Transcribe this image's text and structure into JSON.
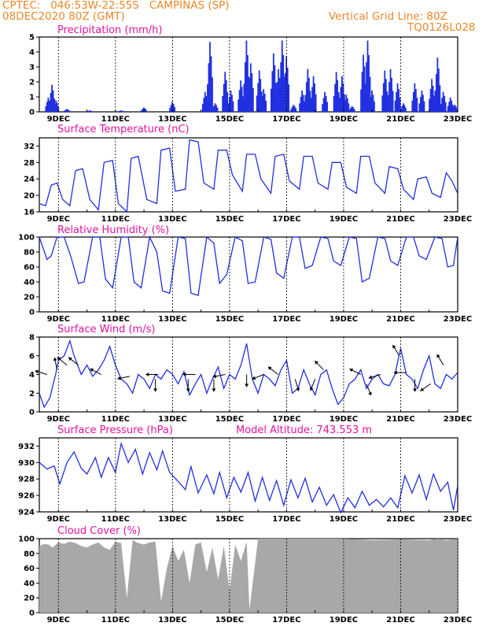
{
  "header": {
    "org_location": "CPTEC:   046:53W-22:55S   CAMPINAS (SP)",
    "run_time": "08DEC2020 80Z (GMT)",
    "grid_line": "Vertical Grid Line: 80Z",
    "code": "TQ0126L028"
  },
  "colors": {
    "header": "#e8882a",
    "panel_title": "#e0149c",
    "series_line": "#2030e0",
    "cloud_fill": "#a8a8a8",
    "wind_arrow": "#000000"
  },
  "chart_data": [
    {
      "type": "bar",
      "title": "Precipitation (mm/h)",
      "ylim": [
        0,
        5
      ],
      "y_ticks": [
        "0",
        "1",
        "2",
        "3",
        "4",
        "5"
      ],
      "x_ticks": [
        "9DEC",
        "11DEC",
        "13DEC",
        "15DEC",
        "17DEC",
        "19DEC",
        "21DEC",
        "23DEC"
      ],
      "xlim_days": [
        8.33,
        23.0
      ],
      "events": [
        {
          "day": 8.65,
          "peak": 1.0
        },
        {
          "day": 8.78,
          "peak": 1.9
        },
        {
          "day": 8.92,
          "peak": 0.8
        },
        {
          "day": 9.3,
          "peak": 0.2
        },
        {
          "day": 10.1,
          "peak": 0.1
        },
        {
          "day": 11.2,
          "peak": 0.1
        },
        {
          "day": 12.0,
          "peak": 0.3
        },
        {
          "day": 13.0,
          "peak": 0.7
        },
        {
          "day": 14.15,
          "peak": 1.4
        },
        {
          "day": 14.32,
          "peak": 4.9
        },
        {
          "day": 14.5,
          "peak": 0.6
        },
        {
          "day": 14.85,
          "peak": 2.8
        },
        {
          "day": 15.05,
          "peak": 1.5
        },
        {
          "day": 15.4,
          "peak": 2.2
        },
        {
          "day": 15.6,
          "peak": 5.0
        },
        {
          "day": 15.75,
          "peak": 3.4
        },
        {
          "day": 16.05,
          "peak": 2.9
        },
        {
          "day": 16.2,
          "peak": 1.6
        },
        {
          "day": 16.55,
          "peak": 4.1
        },
        {
          "day": 16.72,
          "peak": 3.0
        },
        {
          "day": 16.85,
          "peak": 5.0
        },
        {
          "day": 17.0,
          "peak": 3.9
        },
        {
          "day": 17.25,
          "peak": 0.5
        },
        {
          "day": 17.55,
          "peak": 1.5
        },
        {
          "day": 17.75,
          "peak": 3.0
        },
        {
          "day": 17.95,
          "peak": 2.5
        },
        {
          "day": 18.35,
          "peak": 1.4
        },
        {
          "day": 18.75,
          "peak": 2.8
        },
        {
          "day": 18.95,
          "peak": 2.5
        },
        {
          "day": 19.1,
          "peak": 1.2
        },
        {
          "day": 19.3,
          "peak": 0.4
        },
        {
          "day": 19.7,
          "peak": 4.0
        },
        {
          "day": 19.85,
          "peak": 5.0
        },
        {
          "day": 20.0,
          "peak": 1.5
        },
        {
          "day": 20.45,
          "peak": 2.9
        },
        {
          "day": 20.65,
          "peak": 3.0
        },
        {
          "day": 20.9,
          "peak": 2.0
        },
        {
          "day": 21.1,
          "peak": 0.6
        },
        {
          "day": 21.5,
          "peak": 2.0
        },
        {
          "day": 21.75,
          "peak": 1.5
        },
        {
          "day": 22.1,
          "peak": 2.3
        },
        {
          "day": 22.3,
          "peak": 3.8
        },
        {
          "day": 22.5,
          "peak": 1.4
        },
        {
          "day": 22.75,
          "peak": 1.0
        },
        {
          "day": 22.9,
          "peak": 0.5
        }
      ]
    },
    {
      "type": "line",
      "title": "Surface Temperature (nC)",
      "ylim": [
        16,
        34
      ],
      "y_ticks": [
        "16",
        "20",
        "24",
        "28",
        "32"
      ],
      "x_ticks": [
        "9DEC",
        "11DEC",
        "13DEC",
        "15DEC",
        "17DEC",
        "19DEC",
        "21DEC",
        "23DEC"
      ],
      "x": [
        8.33,
        8.55,
        8.75,
        8.95,
        9.15,
        9.4,
        9.6,
        9.85,
        10.1,
        10.4,
        10.6,
        10.9,
        11.1,
        11.4,
        11.55,
        11.8,
        12.1,
        12.45,
        12.6,
        12.9,
        13.1,
        13.45,
        13.6,
        13.9,
        14.1,
        14.45,
        14.6,
        14.9,
        15.1,
        15.45,
        15.6,
        15.9,
        16.1,
        16.45,
        16.6,
        16.9,
        17.1,
        17.45,
        17.6,
        17.9,
        18.1,
        18.45,
        18.6,
        18.9,
        19.1,
        19.45,
        19.6,
        19.9,
        20.1,
        20.45,
        20.6,
        20.9,
        21.1,
        21.45,
        21.6,
        21.9,
        22.1,
        22.4,
        22.6,
        22.8,
        23.0
      ],
      "values": [
        18,
        17.5,
        22.5,
        23,
        19,
        17.5,
        26,
        26.5,
        19,
        16.5,
        28,
        28.5,
        18,
        16,
        29,
        29.5,
        19,
        18,
        31,
        31.5,
        21,
        21.5,
        33.5,
        33,
        23,
        21.5,
        31,
        31,
        25,
        21,
        30,
        30,
        24,
        20.5,
        29.5,
        30,
        23.5,
        21.5,
        29.5,
        29.5,
        23,
        21.5,
        28,
        28,
        22,
        20.5,
        29.5,
        29.5,
        23,
        20.5,
        27,
        26.5,
        21.5,
        19,
        24,
        24.5,
        20.5,
        19.5,
        25.5,
        23.5,
        20.5
      ]
    },
    {
      "type": "line",
      "title": "Relative Humidity (%)",
      "ylim": [
        0,
        100
      ],
      "y_ticks": [
        "0",
        "20",
        "40",
        "60",
        "80",
        "100"
      ],
      "x_ticks": [
        "9DEC",
        "11DEC",
        "13DEC",
        "15DEC",
        "17DEC",
        "19DEC",
        "21DEC",
        "23DEC"
      ],
      "x": [
        8.33,
        8.6,
        8.75,
        8.95,
        9.2,
        9.45,
        9.7,
        9.9,
        10.2,
        10.45,
        10.65,
        10.9,
        11.2,
        11.45,
        11.65,
        11.9,
        12.2,
        12.45,
        12.65,
        12.9,
        13.2,
        13.45,
        13.65,
        13.9,
        14.2,
        14.45,
        14.65,
        14.9,
        15.2,
        15.45,
        15.65,
        15.9,
        16.2,
        16.45,
        16.65,
        16.9,
        17.2,
        17.45,
        17.65,
        17.9,
        18.2,
        18.45,
        18.65,
        18.9,
        19.2,
        19.45,
        19.65,
        19.9,
        20.2,
        20.45,
        20.65,
        20.9,
        21.2,
        21.45,
        21.65,
        21.9,
        22.2,
        22.45,
        22.65,
        22.85,
        23.0
      ],
      "values": [
        100,
        70,
        75,
        100,
        100,
        72,
        38,
        40,
        100,
        100,
        44,
        32,
        100,
        100,
        40,
        32,
        100,
        80,
        28,
        25,
        100,
        98,
        25,
        22,
        100,
        92,
        38,
        50,
        100,
        95,
        38,
        40,
        100,
        97,
        52,
        45,
        100,
        100,
        58,
        62,
        100,
        98,
        68,
        62,
        100,
        98,
        40,
        45,
        100,
        98,
        68,
        62,
        100,
        100,
        75,
        70,
        100,
        98,
        60,
        62,
        100
      ]
    },
    {
      "type": "line",
      "title": "Surface Wind (m/s)",
      "ylim": [
        0,
        8
      ],
      "y_ticks": [
        "0",
        "2",
        "4",
        "6",
        "8"
      ],
      "x_ticks": [
        "9DEC",
        "11DEC",
        "13DEC",
        "15DEC",
        "17DEC",
        "19DEC",
        "21DEC",
        "23DEC"
      ],
      "x": [
        8.33,
        8.5,
        8.7,
        8.9,
        9.0,
        9.2,
        9.4,
        9.55,
        9.8,
        10.0,
        10.2,
        10.4,
        10.6,
        10.8,
        11.0,
        11.2,
        11.4,
        11.6,
        11.8,
        12.0,
        12.2,
        12.4,
        12.6,
        12.8,
        13.0,
        13.2,
        13.4,
        13.6,
        13.8,
        14.0,
        14.2,
        14.4,
        14.6,
        14.8,
        15.0,
        15.2,
        15.4,
        15.6,
        15.8,
        16.0,
        16.2,
        16.4,
        16.6,
        16.8,
        17.0,
        17.2,
        17.4,
        17.6,
        17.8,
        18.0,
        18.2,
        18.4,
        18.6,
        18.8,
        19.0,
        19.2,
        19.4,
        19.6,
        19.8,
        20.0,
        20.2,
        20.4,
        20.6,
        20.8,
        21.0,
        21.2,
        21.4,
        21.6,
        21.8,
        22.0,
        22.2,
        22.4,
        22.6,
        22.8,
        23.0
      ],
      "values": [
        2.0,
        0.5,
        1.5,
        4.0,
        5.5,
        6.0,
        7.6,
        6.0,
        4.0,
        5.0,
        3.8,
        4.5,
        5.5,
        7.0,
        5.0,
        3.5,
        3.0,
        2.0,
        4.0,
        3.5,
        2.5,
        4.0,
        3.5,
        4.5,
        4.0,
        3.0,
        4.3,
        1.8,
        3.0,
        4.0,
        2.0,
        3.5,
        4.8,
        2.5,
        4.0,
        3.5,
        5.0,
        7.3,
        3.5,
        2.0,
        4.0,
        3.5,
        2.8,
        4.5,
        5.5,
        2.0,
        2.5,
        4.5,
        3.0,
        1.8,
        4.0,
        4.5,
        2.5,
        0.8,
        1.5,
        3.0,
        3.5,
        4.5,
        2.5,
        3.5,
        4.0,
        3.0,
        2.8,
        4.0,
        6.8,
        4.0,
        3.5,
        2.5,
        4.5,
        6.0,
        3.0,
        2.5,
        4.0,
        3.5,
        4.2
      ],
      "arrows": [
        {
          "day": 8.6,
          "speed": 4.0,
          "dx": -1,
          "dy": -0.3
        },
        {
          "day": 8.95,
          "speed": 4.5,
          "dx": -0.2,
          "dy": -1
        },
        {
          "day": 9.3,
          "speed": 5.0,
          "dx": -1,
          "dy": -0.8
        },
        {
          "day": 9.7,
          "speed": 5.0,
          "dx": -0.9,
          "dy": -0.7
        },
        {
          "day": 10.5,
          "speed": 4.0,
          "dx": -1,
          "dy": -0.5
        },
        {
          "day": 11.5,
          "speed": 3.8,
          "dx": -1,
          "dy": 0.2
        },
        {
          "day": 12.4,
          "speed": 3.5,
          "dx": 0,
          "dy": 1
        },
        {
          "day": 12.5,
          "speed": 4.0,
          "dx": -1,
          "dy": 0
        },
        {
          "day": 13.55,
          "speed": 3.5,
          "dx": 0,
          "dy": 1
        },
        {
          "day": 13.8,
          "speed": 4.0,
          "dx": -1,
          "dy": 0
        },
        {
          "day": 14.45,
          "speed": 3.5,
          "dx": 0,
          "dy": 1
        },
        {
          "day": 14.85,
          "speed": 4.0,
          "dx": -1,
          "dy": 0.2
        },
        {
          "day": 15.6,
          "speed": 4.0,
          "dx": 0,
          "dy": 1
        },
        {
          "day": 16.2,
          "speed": 4.0,
          "dx": -1,
          "dy": 0.4
        },
        {
          "day": 16.7,
          "speed": 4.0,
          "dx": -0.9,
          "dy": -0.7
        },
        {
          "day": 17.3,
          "speed": 3.5,
          "dx": 0.3,
          "dy": 1
        },
        {
          "day": 18.0,
          "speed": 3.5,
          "dx": -0.4,
          "dy": 1
        },
        {
          "day": 18.3,
          "speed": 4.5,
          "dx": -0.8,
          "dy": -0.8
        },
        {
          "day": 19.6,
          "speed": 4.0,
          "dx": -1,
          "dy": -0.5
        },
        {
          "day": 19.8,
          "speed": 3.0,
          "dx": 0.4,
          "dy": 1
        },
        {
          "day": 20.3,
          "speed": 4.0,
          "dx": -1,
          "dy": 0.3
        },
        {
          "day": 20.95,
          "speed": 6.0,
          "dx": -0.6,
          "dy": -1
        },
        {
          "day": 21.2,
          "speed": 4.2,
          "dx": -1,
          "dy": 0
        },
        {
          "day": 21.5,
          "speed": 3.5,
          "dx": 0,
          "dy": 1
        },
        {
          "day": 22.05,
          "speed": 3.0,
          "dx": -1,
          "dy": 0.7
        },
        {
          "day": 22.5,
          "speed": 5.0,
          "dx": -0.6,
          "dy": -1
        }
      ]
    },
    {
      "type": "line",
      "title": "Surface Pressure (hPa)",
      "annotation": "Model Altitude: 743.553 m",
      "ylim": [
        924,
        933
      ],
      "y_ticks": [
        "924",
        "926",
        "928",
        "930",
        "932"
      ],
      "x_ticks": [
        "9DEC",
        "11DEC",
        "13DEC",
        "15DEC",
        "17DEC",
        "19DEC",
        "21DEC",
        "23DEC"
      ],
      "x": [
        8.33,
        8.6,
        8.85,
        9.05,
        9.3,
        9.55,
        9.8,
        10.0,
        10.3,
        10.5,
        10.75,
        11.0,
        11.2,
        11.45,
        11.7,
        11.95,
        12.2,
        12.45,
        12.65,
        12.9,
        13.2,
        13.45,
        13.65,
        13.9,
        14.2,
        14.45,
        14.65,
        14.9,
        15.15,
        15.4,
        15.65,
        15.9,
        16.15,
        16.4,
        16.65,
        16.9,
        17.15,
        17.4,
        17.65,
        17.9,
        18.15,
        18.4,
        18.65,
        18.9,
        19.15,
        19.4,
        19.65,
        19.9,
        20.15,
        20.4,
        20.65,
        20.9,
        21.15,
        21.4,
        21.65,
        21.9,
        22.15,
        22.4,
        22.65,
        22.85,
        23.0
      ],
      "values": [
        930,
        929.2,
        929.6,
        927.4,
        930,
        931.3,
        929.3,
        928.6,
        930.6,
        928.2,
        930.6,
        928.8,
        932.3,
        930,
        931.6,
        928.6,
        931.2,
        929.1,
        931.4,
        928.8,
        927.7,
        926.7,
        929.5,
        926.3,
        928.5,
        926.2,
        928.8,
        925.7,
        928.2,
        926.4,
        928.8,
        925.3,
        928.2,
        925.4,
        927.8,
        924.8,
        927.9,
        925.7,
        928.1,
        925.2,
        927.0,
        924.8,
        926.1,
        923.9,
        925.7,
        924.5,
        926.5,
        924.8,
        925.5,
        924.6,
        925.7,
        924.5,
        928.4,
        926.3,
        928.5,
        925.5,
        928.6,
        926.5,
        927.6,
        924.2,
        927.2
      ]
    },
    {
      "type": "area",
      "title": "Cloud Cover (%)",
      "ylim": [
        0,
        100
      ],
      "y_ticks": [
        "0",
        "20",
        "40",
        "60",
        "80",
        "100"
      ],
      "x_ticks": [
        "9DEC",
        "11DEC",
        "13DEC",
        "15DEC",
        "17DEC",
        "19DEC",
        "21DEC",
        "23DEC"
      ],
      "x": [
        8.33,
        8.5,
        8.65,
        8.8,
        9.0,
        9.2,
        9.4,
        9.6,
        9.8,
        10.0,
        10.2,
        10.4,
        10.6,
        10.8,
        11.0,
        11.2,
        11.4,
        11.6,
        11.8,
        12.0,
        12.2,
        12.4,
        12.6,
        12.8,
        13.0,
        13.2,
        13.4,
        13.6,
        13.8,
        14.0,
        14.2,
        14.4,
        14.6,
        14.8,
        15.0,
        15.2,
        15.4,
        15.6,
        15.7,
        16.0,
        17.0,
        18.0,
        19.0,
        20.0,
        21.0,
        22.0,
        22.3,
        22.6,
        23.0
      ],
      "values": [
        90,
        93,
        92,
        88,
        95,
        93,
        96,
        94,
        90,
        88,
        92,
        95,
        88,
        85,
        96,
        94,
        20,
        98,
        94,
        92,
        95,
        96,
        15,
        60,
        90,
        70,
        85,
        40,
        92,
        95,
        55,
        88,
        45,
        90,
        30,
        92,
        70,
        96,
        4,
        100,
        100,
        100,
        100,
        98,
        99,
        98,
        100,
        98,
        100
      ]
    }
  ]
}
